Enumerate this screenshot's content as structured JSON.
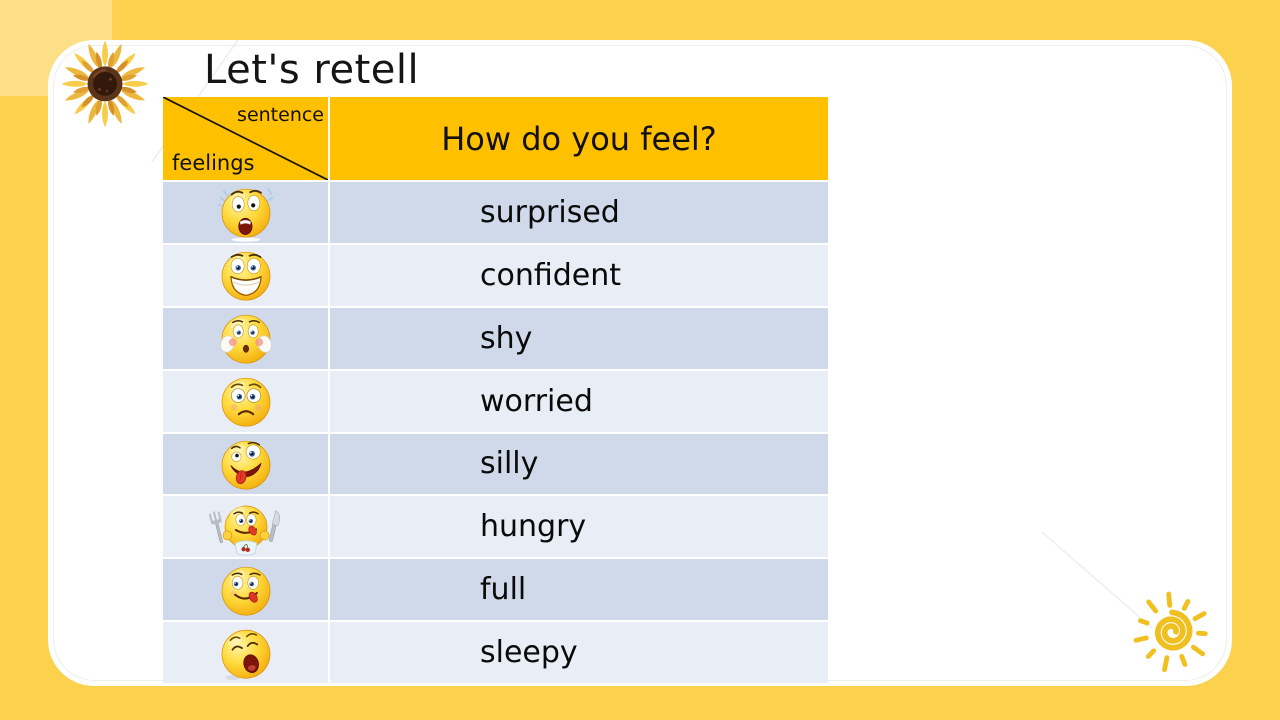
{
  "slide": {
    "title": "Let's retell"
  },
  "table": {
    "corner": {
      "top_label": "sentence",
      "bottom_label": "feelings"
    },
    "header": "How do you feel?",
    "rows": [
      {
        "feeling": "surprised",
        "label": "surprised",
        "icon": "surprised-emoji-icon"
      },
      {
        "feeling": "confident",
        "label": "confident",
        "icon": "confident-emoji-icon"
      },
      {
        "feeling": "shy",
        "label": "shy",
        "icon": "shy-emoji-icon"
      },
      {
        "feeling": "worried",
        "label": "worried",
        "icon": "worried-emoji-icon"
      },
      {
        "feeling": "silly",
        "label": "silly",
        "icon": "silly-emoji-icon"
      },
      {
        "feeling": "hungry",
        "label": "hungry",
        "icon": "hungry-emoji-icon"
      },
      {
        "feeling": "full",
        "label": "full",
        "icon": "full-emoji-icon"
      },
      {
        "feeling": "sleepy",
        "label": "sleepy",
        "icon": "sleepy-emoji-icon"
      }
    ]
  },
  "decor": {
    "top_left_icon": "sunflower-image",
    "bottom_right_icon": "sun-doodle-icon"
  },
  "colors": {
    "frame_yellow": "#FBD14D",
    "frame_yellow_light": "#FCDF87",
    "header_orange": "#FFC000",
    "row_dark": "#CFD9EA",
    "row_light": "#E9EDF6",
    "cell_gap": "#FFFFFF",
    "title_text": "#151515",
    "sun_gold": "#F0C020"
  }
}
